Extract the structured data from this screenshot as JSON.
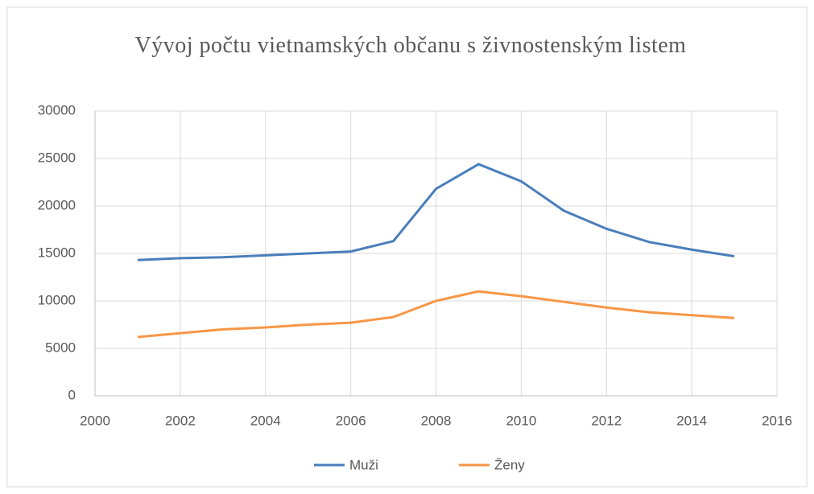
{
  "chart_data": {
    "type": "line",
    "title": "Vývoj počtu vietnamských občanu s živnostenským listem",
    "x": [
      2001,
      2002,
      2003,
      2004,
      2005,
      2006,
      2007,
      2008,
      2009,
      2010,
      2011,
      2012,
      2013,
      2014,
      2015
    ],
    "series": [
      {
        "name": "Muži",
        "color": "#4a7ebb",
        "values": [
          14300,
          14500,
          14600,
          14800,
          15000,
          15200,
          16300,
          21800,
          24400,
          22600,
          19500,
          17600,
          16200,
          15400,
          14700
        ]
      },
      {
        "name": "Ženy",
        "color": "#f79646",
        "values": [
          6200,
          6600,
          7000,
          7200,
          7500,
          7700,
          8300,
          10000,
          11000,
          10500,
          9900,
          9300,
          8800,
          8500,
          8200
        ]
      }
    ],
    "xlim": [
      2000,
      2016
    ],
    "xticks": [
      2000,
      2002,
      2004,
      2006,
      2008,
      2010,
      2012,
      2014,
      2016
    ],
    "ylim": [
      0,
      30000
    ],
    "yticks": [
      0,
      5000,
      10000,
      15000,
      20000,
      25000,
      30000
    ],
    "grid": true,
    "legend": "bottom"
  }
}
